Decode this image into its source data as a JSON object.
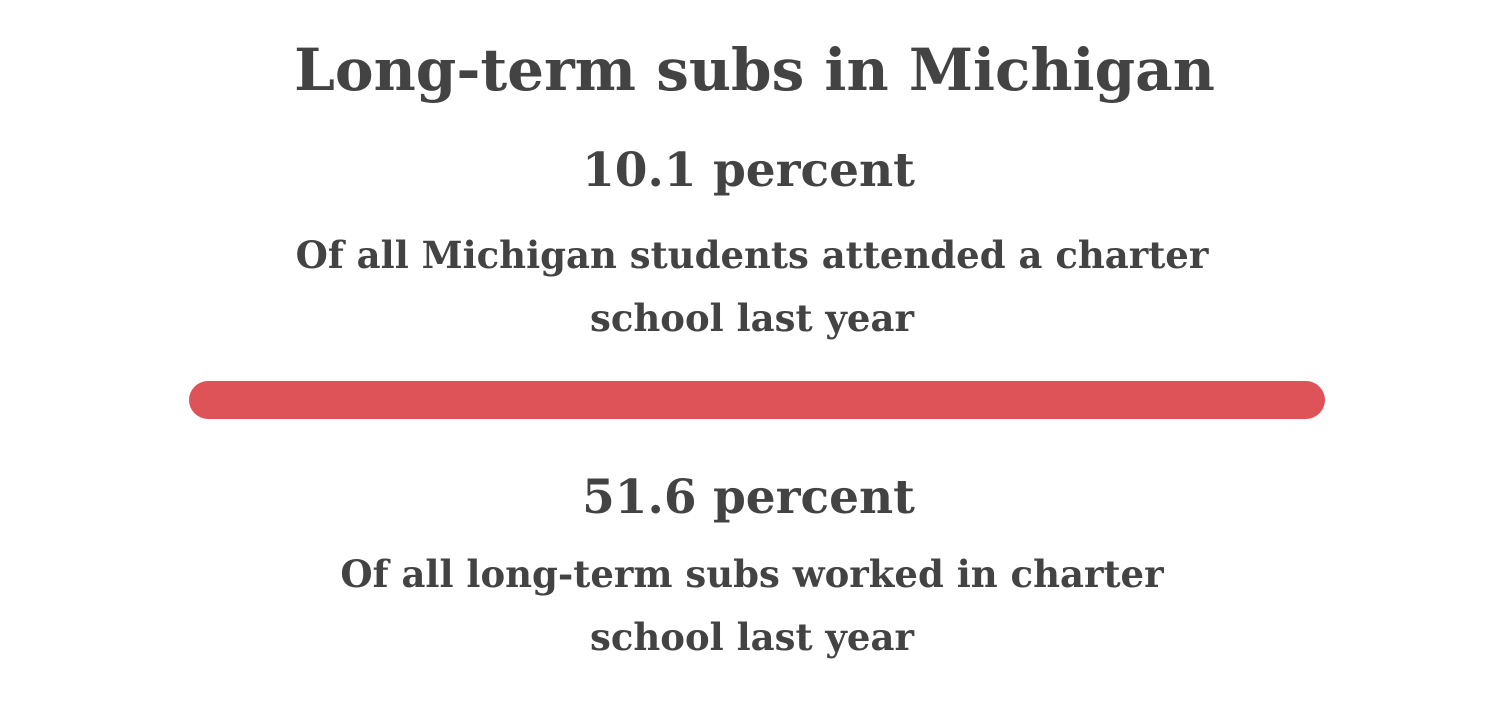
{
  "title": "Long-term subs in Michigan",
  "stat1": {
    "value": "10.1 percent",
    "desc_line1": "Of all Michigan students attended a charter",
    "desc_line2": "school last year"
  },
  "stat2": {
    "value": "51.6 percent",
    "desc_line1": "Of all long-term subs worked in charter",
    "desc_line2": "school last year"
  },
  "colors": {
    "text": "#434343",
    "divider": "#dd5357",
    "background": "#ffffff"
  }
}
